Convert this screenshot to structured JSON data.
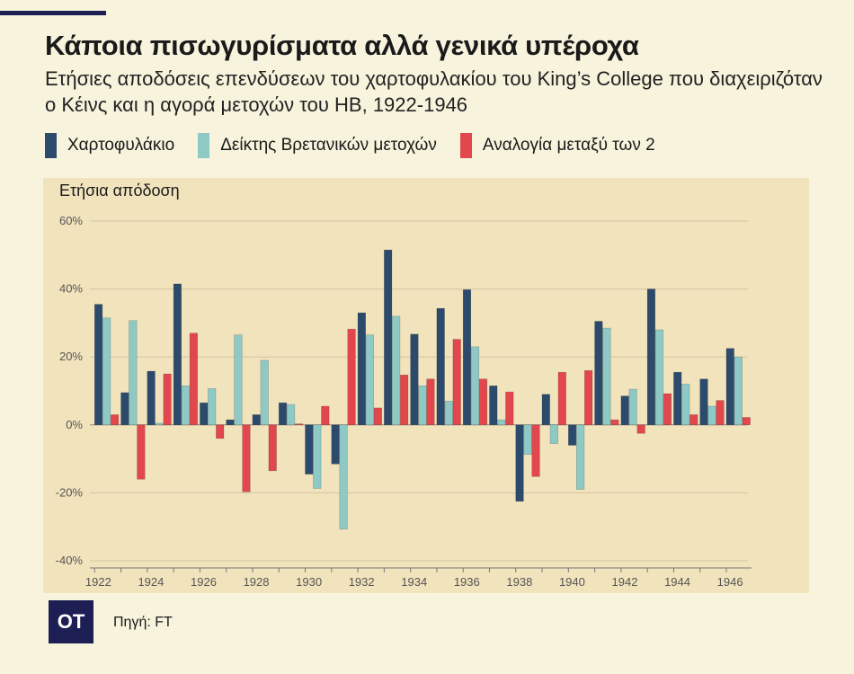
{
  "title": "Κάποια πισωγυρίσματα αλλά γενικά υπέροχα",
  "subtitle": "Ετήσιες αποδόσεις επενδύσεων του χαρτοφυλακίου του King’s College που διαχειριζόταν ο Κέινς και η αγορά μετοχών του ΗΒ, 1922-1946",
  "legend": [
    {
      "label": "Χαρτοφυλάκιο",
      "color": "#2c4a6b"
    },
    {
      "label": "Δείκτης Βρετανικών μετοχών",
      "color": "#8fc9c6"
    },
    {
      "label": "Αναλογία μεταξύ των 2",
      "color": "#e1474d"
    }
  ],
  "source": "Πηγή: FT",
  "logo": "OT",
  "chart_data": {
    "type": "bar",
    "title": "Κάποια πισωγυρίσματα αλλά γενικά υπέροχα",
    "ylabel": "Ετήσια απόδοση",
    "xlabel": "",
    "ylim": [
      -40,
      60
    ],
    "yticks": [
      "60%",
      "40%",
      "20%",
      "0%",
      "-20%",
      "-40%"
    ],
    "ytick_values": [
      60,
      40,
      20,
      0,
      -20,
      -40
    ],
    "categories": [
      "1922",
      "1923",
      "1924",
      "1925",
      "1926",
      "1927",
      "1928",
      "1929",
      "1930",
      "1931",
      "1932",
      "1933",
      "1934",
      "1935",
      "1936",
      "1937",
      "1938",
      "1939",
      "1940",
      "1941",
      "1942",
      "1943",
      "1944",
      "1945",
      "1946"
    ],
    "xtick_labels": [
      "1922",
      "1924",
      "1926",
      "1928",
      "1930",
      "1932",
      "1934",
      "1936",
      "1938",
      "1940",
      "1942",
      "1944",
      "1946"
    ],
    "series": [
      {
        "name": "Χαρτοφυλάκιο",
        "color": "#2c4a6b",
        "values": [
          35.5,
          9.5,
          15.8,
          41.5,
          6.5,
          1.5,
          3.0,
          6.5,
          -14.5,
          -11.5,
          33.0,
          51.5,
          26.7,
          34.3,
          39.8,
          11.5,
          -22.5,
          9.0,
          -6.0,
          30.5,
          8.5,
          40.0,
          15.5,
          13.5,
          22.5
        ]
      },
      {
        "name": "Δείκτης Βρετανικών μετοχών",
        "color": "#8fc9c6",
        "values": [
          31.5,
          30.7,
          0.5,
          11.5,
          10.7,
          26.5,
          19.0,
          6.0,
          -18.7,
          -30.7,
          26.5,
          32.0,
          11.5,
          7.0,
          23.0,
          1.5,
          -8.7,
          -5.5,
          -19.0,
          28.5,
          10.5,
          28.0,
          12.0,
          5.5,
          20.0
        ]
      },
      {
        "name": "Αναλογία μεταξύ των 2",
        "color": "#e1474d",
        "values": [
          3.0,
          -16.0,
          15.0,
          27.0,
          -4.0,
          -19.7,
          -13.5,
          0.3,
          5.5,
          28.2,
          5.0,
          14.7,
          13.5,
          25.2,
          13.5,
          9.7,
          -15.2,
          15.5,
          16.0,
          1.5,
          -2.5,
          9.2,
          3.0,
          7.2,
          2.2
        ]
      }
    ],
    "grid": true,
    "legend_position": "top-left"
  }
}
